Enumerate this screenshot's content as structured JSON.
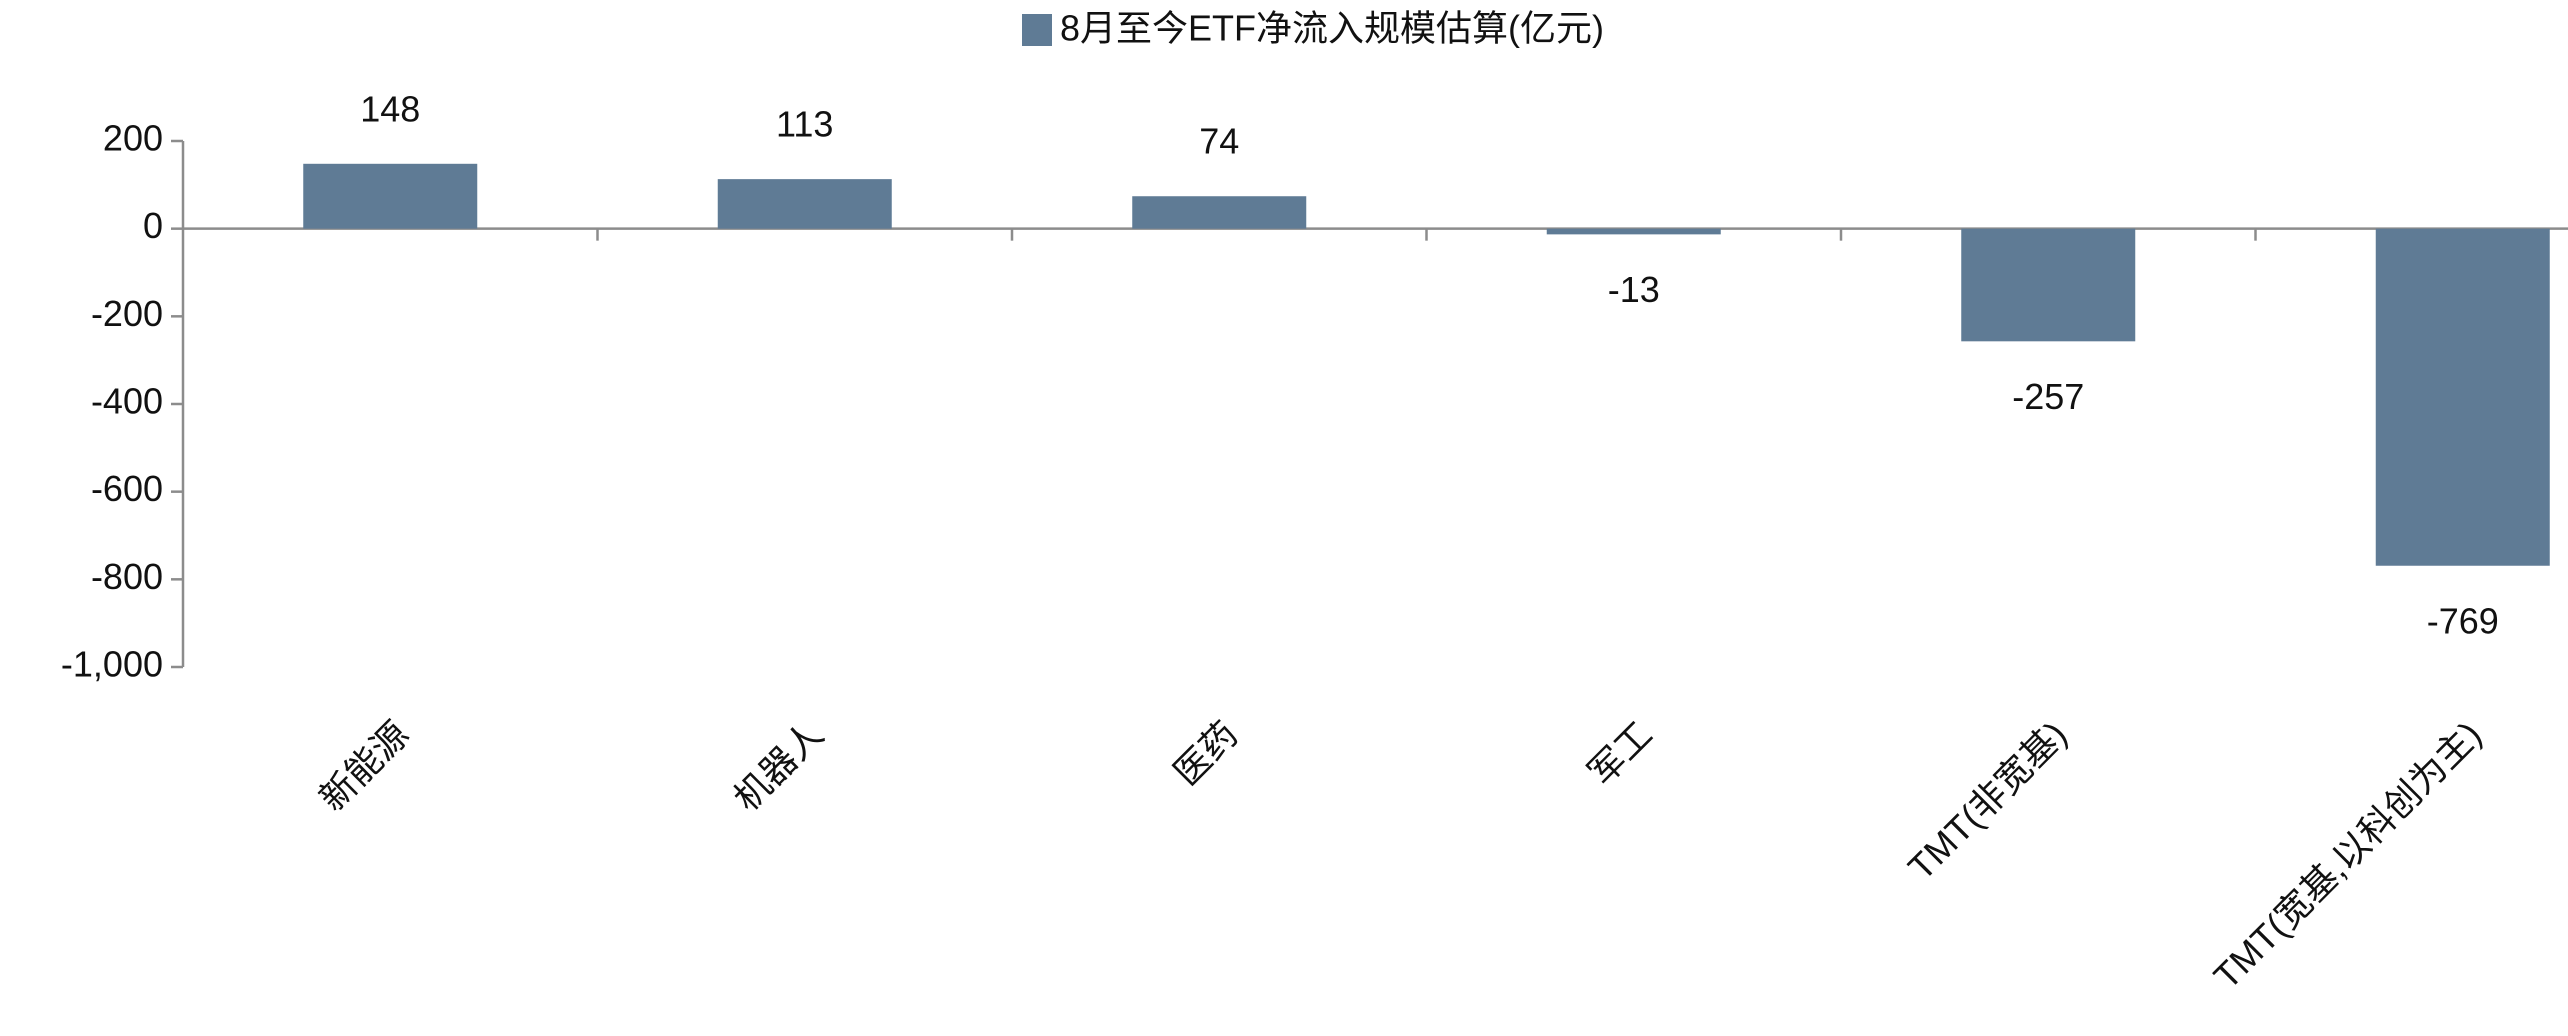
{
  "chart_data": {
    "type": "bar",
    "categories": [
      "新能源",
      "机器人",
      "医药",
      "军工",
      "TMT(非宽基)",
      "TMT(宽基,以科创为主)"
    ],
    "series": [
      {
        "name": "8月至今ETF净流入规模估算(亿元)",
        "color": "#5f7b95",
        "values": [
          148,
          113,
          74,
          -13,
          -257,
          -769
        ]
      }
    ],
    "ylim": [
      -1000,
      200
    ],
    "yticks": [
      {
        "value": -1000,
        "label": "-1,000"
      },
      -800,
      -600,
      -400,
      -200,
      0,
      200
    ],
    "grid": false
  }
}
